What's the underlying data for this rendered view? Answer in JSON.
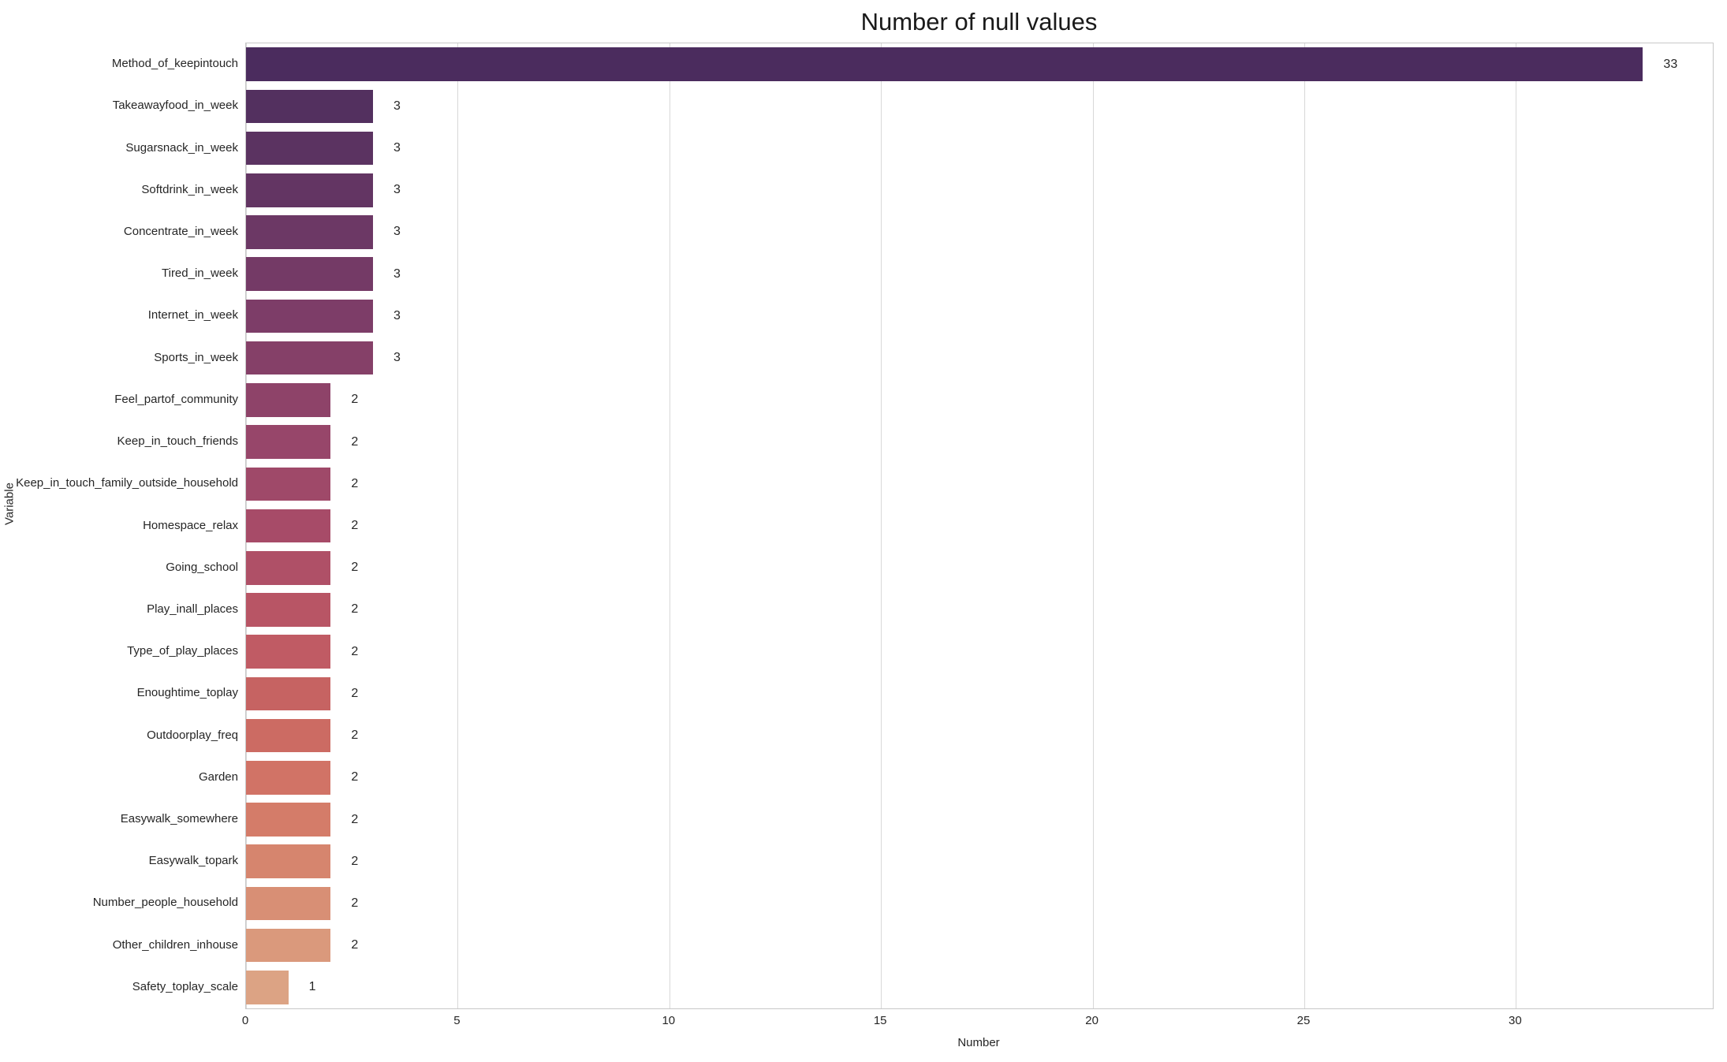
{
  "title": "Number of null values",
  "xlabel": "Number",
  "ylabel": "Variable",
  "colors": {
    "background": "#ffffff",
    "grid": "#d8d8d8",
    "spine": "#c8c8c8",
    "text": "#262626"
  },
  "chart_data": {
    "type": "bar",
    "orientation": "horizontal",
    "title": "Number of null values",
    "xlabel": "Number",
    "ylabel": "Variable",
    "grid": "vertical",
    "legend": "none",
    "xlim": [
      0,
      34.65
    ],
    "xticks": [
      0,
      5,
      10,
      15,
      20,
      25,
      30
    ],
    "categories": [
      "Method_of_keepintouch",
      "Takeawayfood_in_week",
      "Sugarsnack_in_week",
      "Softdrink_in_week",
      "Concentrate_in_week",
      "Tired_in_week",
      "Internet_in_week",
      "Sports_in_week",
      "Feel_partof_community",
      "Keep_in_touch_friends",
      "Keep_in_touch_family_outside_household",
      "Homespace_relax",
      "Going_school",
      "Play_inall_places",
      "Type_of_play_places",
      "Enoughtime_toplay",
      "Outdoorplay_freq",
      "Garden",
      "Easywalk_somewhere",
      "Easywalk_topark",
      "Number_people_household",
      "Other_children_inhouse",
      "Safety_toplay_scale"
    ],
    "values": [
      33,
      3,
      3,
      3,
      3,
      3,
      3,
      3,
      2,
      2,
      2,
      2,
      2,
      2,
      2,
      2,
      2,
      2,
      2,
      2,
      2,
      2,
      1
    ],
    "bar_colors": [
      "#4b2c5e",
      "#53305f",
      "#5b3361",
      "#633563",
      "#6c3865",
      "#743a66",
      "#7d3d68",
      "#854068",
      "#8e4369",
      "#97466a",
      "#9f4969",
      "#a74b68",
      "#af5067",
      "#b85565",
      "#c05b64",
      "#c66362",
      "#cc6b63",
      "#d17366",
      "#d47c69",
      "#d6856e",
      "#d88f75",
      "#da997c",
      "#dca384"
    ]
  }
}
